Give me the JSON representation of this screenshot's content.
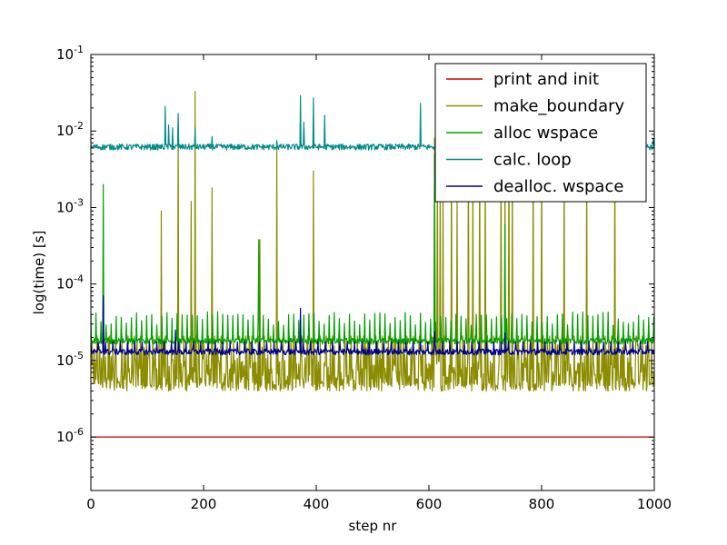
{
  "chart_data": {
    "type": "line",
    "title": "",
    "xlabel": "step nr",
    "ylabel": "log(time) [s]",
    "y_scale": "log",
    "xlim": [
      0,
      1000
    ],
    "ylim": [
      2e-07,
      0.1
    ],
    "grid": false,
    "legend_position": "top-right",
    "x_ticks": [
      {
        "value": 0,
        "label": "0"
      },
      {
        "value": 200,
        "label": "200"
      },
      {
        "value": 400,
        "label": "400"
      },
      {
        "value": 600,
        "label": "600"
      },
      {
        "value": 800,
        "label": "800"
      },
      {
        "value": 1000,
        "label": "1000"
      }
    ],
    "y_ticks": [
      {
        "value": 1e-06,
        "base": "10",
        "exp": "-6"
      },
      {
        "value": 1e-05,
        "base": "10",
        "exp": "-5"
      },
      {
        "value": 0.0001,
        "base": "10",
        "exp": "-4"
      },
      {
        "value": 0.001,
        "base": "10",
        "exp": "-3"
      },
      {
        "value": 0.01,
        "base": "10",
        "exp": "-2"
      },
      {
        "value": 0.1,
        "base": "10",
        "exp": "-1"
      }
    ],
    "series": [
      {
        "name": "print and init",
        "color": "#cc0000",
        "points": [
          [
            0,
            1e-06
          ],
          [
            1000,
            1e-06
          ]
        ]
      },
      {
        "name": "make_boundary",
        "color": "#8c8c00",
        "baseline_low": 4e-06,
        "baseline_high": 2.2e-05,
        "spikes": [
          [
            125,
            0.0009
          ],
          [
            155,
            0.0125
          ],
          [
            178,
            0.0012
          ],
          [
            185,
            0.033
          ],
          [
            215,
            0.0018
          ],
          [
            300,
            0.00038
          ],
          [
            330,
            0.007
          ],
          [
            395,
            0.003
          ],
          [
            610,
            0.008
          ],
          [
            615,
            0.004
          ],
          [
            620,
            0.003
          ],
          [
            625,
            0.002
          ],
          [
            640,
            0.006
          ],
          [
            650,
            0.0012
          ],
          [
            670,
            0.006
          ],
          [
            678,
            0.003
          ],
          [
            690,
            0.008
          ],
          [
            700,
            0.006
          ],
          [
            728,
            0.006
          ],
          [
            735,
            0.004
          ],
          [
            742,
            0.007
          ],
          [
            748,
            0.004
          ],
          [
            785,
            0.008
          ],
          [
            800,
            0.0068
          ],
          [
            840,
            0.004
          ],
          [
            880,
            0.005
          ],
          [
            930,
            0.008
          ]
        ]
      },
      {
        "name": "alloc wspace",
        "color": "#00a000",
        "baseline": 1.8e-05,
        "spikes": [
          [
            22,
            0.002
          ],
          [
            298,
            0.00038
          ],
          [
            610,
            0.005
          ],
          [
            735,
            0.0006
          ]
        ]
      },
      {
        "name": "calc. loop",
        "color": "#008b8b",
        "baseline": 0.0062,
        "spikes": [
          [
            132,
            0.021
          ],
          [
            138,
            0.012
          ],
          [
            145,
            0.011
          ],
          [
            155,
            0.017
          ],
          [
            185,
            0.011
          ],
          [
            215,
            0.0085
          ],
          [
            330,
            0.0075
          ],
          [
            372,
            0.029
          ],
          [
            378,
            0.013
          ],
          [
            395,
            0.027
          ],
          [
            415,
            0.016
          ],
          [
            585,
            0.023
          ],
          [
            612,
            0.01
          ],
          [
            650,
            0.0095
          ],
          [
            760,
            0.009
          ],
          [
            790,
            0.012
          ],
          [
            998,
            0.0078
          ]
        ]
      },
      {
        "name": "dealloc. wspace",
        "color": "#000090",
        "baseline": 1.3e-05,
        "spikes": [
          [
            22,
            7e-05
          ],
          [
            150,
            2.5e-05
          ],
          [
            372,
            4.8e-05
          ],
          [
            610,
            2.4e-05
          ],
          [
            735,
            2.3e-05
          ]
        ]
      }
    ]
  }
}
